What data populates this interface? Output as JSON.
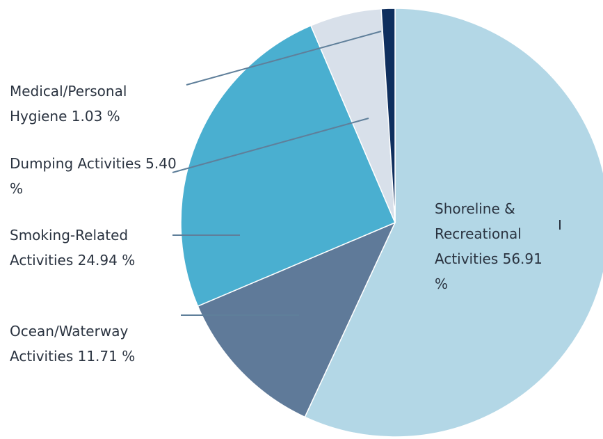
{
  "chart_data": {
    "type": "pie",
    "categories": [
      "Shoreline & Recreational Activities",
      "Ocean/Waterway Activities",
      "Smoking-Related Activities",
      "Dumping Activities",
      "Medical/Personal Hygiene"
    ],
    "values": [
      56.91,
      11.71,
      24.94,
      5.4,
      1.03
    ],
    "value_labels": [
      "56.91 %",
      "11.71 %",
      "24.94 %",
      "5.40 %",
      "1.03 %"
    ],
    "colors": [
      "#b3d7e6",
      "#5f7a99",
      "#4aafd0",
      "#d8e0ea",
      "#0f2f5e"
    ]
  }
}
